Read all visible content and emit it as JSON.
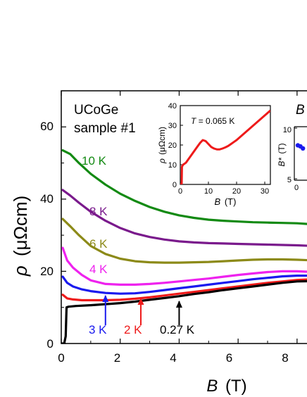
{
  "chart_data": [
    {
      "type": "line",
      "panel": "main",
      "xlabel_var": "B",
      "xlabel_unit": "(T)",
      "ylabel_var": "ρ",
      "ylabel_unit": "(μΩcm)",
      "xlim": [
        0,
        8.6
      ],
      "ylim": [
        0,
        70
      ],
      "xticks": [
        0,
        2,
        4,
        6,
        8
      ],
      "yticks": [
        0,
        20,
        40,
        60
      ],
      "annotation_sample": [
        "UCoGe",
        "sample #1"
      ],
      "series": [
        {
          "name": "10 K",
          "color": "#138a13",
          "x": [
            0.05,
            0.3,
            0.6,
            1.0,
            1.5,
            2.0,
            2.5,
            3.0,
            3.5,
            4.0,
            4.5,
            5.0,
            5.5,
            6.0,
            6.5,
            7.0,
            7.5,
            8.0,
            8.6
          ],
          "y": [
            53.5,
            52.5,
            50.0,
            47.0,
            44.0,
            41.5,
            39.5,
            37.8,
            36.5,
            35.5,
            34.8,
            34.3,
            34.0,
            33.8,
            33.6,
            33.5,
            33.4,
            33.3,
            33.0
          ]
        },
        {
          "name": "8 K",
          "color": "#7a1a8c",
          "x": [
            0.05,
            0.3,
            0.6,
            1.0,
            1.5,
            2.0,
            2.5,
            3.0,
            3.5,
            4.0,
            4.5,
            5.0,
            5.5,
            6.0,
            6.5,
            7.0,
            7.5,
            8.0,
            8.6
          ],
          "y": [
            42.5,
            41.0,
            39.0,
            36.5,
            34.0,
            32.0,
            30.5,
            29.5,
            28.8,
            28.3,
            28.0,
            27.8,
            27.7,
            27.6,
            27.5,
            27.4,
            27.3,
            27.2,
            27.0
          ]
        },
        {
          "name": "6 K",
          "color": "#8c8a18",
          "x": [
            0.05,
            0.3,
            0.6,
            1.0,
            1.5,
            2.0,
            2.5,
            3.0,
            3.5,
            4.0,
            4.5,
            5.0,
            5.5,
            6.0,
            6.5,
            7.0,
            7.5,
            8.0,
            8.6
          ],
          "y": [
            34.5,
            32.5,
            30.0,
            27.0,
            24.8,
            23.5,
            22.8,
            22.5,
            22.4,
            22.4,
            22.5,
            22.6,
            22.8,
            23.0,
            23.2,
            23.3,
            23.3,
            23.2,
            23.0
          ]
        },
        {
          "name": "4 K",
          "color": "#ee22ee",
          "x": [
            0.05,
            0.2,
            0.4,
            0.7,
            1.0,
            1.5,
            2.0,
            2.5,
            3.0,
            3.5,
            4.0,
            4.5,
            5.0,
            5.5,
            6.0,
            6.5,
            7.0,
            7.5,
            8.0,
            8.6
          ],
          "y": [
            26.5,
            23.0,
            21.0,
            19.0,
            17.5,
            16.5,
            16.3,
            16.3,
            16.5,
            16.8,
            17.2,
            17.6,
            18.0,
            18.5,
            19.0,
            19.4,
            19.8,
            20.0,
            20.0,
            19.8
          ]
        },
        {
          "name": "3 K",
          "color": "#1a1aee",
          "x": [
            0.05,
            0.2,
            0.4,
            0.7,
            1.0,
            1.5,
            2.0,
            2.5,
            3.0,
            3.5,
            4.0,
            4.5,
            5.0,
            5.5,
            6.0,
            6.5,
            7.0,
            7.5,
            8.0,
            8.6
          ],
          "y": [
            18.5,
            16.8,
            15.8,
            15.0,
            14.5,
            14.0,
            13.8,
            13.9,
            14.3,
            14.8,
            15.3,
            15.8,
            16.3,
            16.8,
            17.3,
            17.8,
            18.2,
            18.6,
            18.8,
            18.8
          ]
        },
        {
          "name": "2 K",
          "color": "#ee1a1a",
          "x": [
            0.05,
            0.2,
            0.4,
            0.7,
            1.0,
            1.5,
            2.0,
            2.5,
            3.0,
            3.5,
            4.0,
            4.5,
            5.0,
            5.5,
            6.0,
            6.5,
            7.0,
            7.5,
            8.0,
            8.6
          ],
          "y": [
            13.5,
            12.5,
            12.2,
            12.0,
            12.0,
            12.0,
            12.1,
            12.4,
            12.8,
            13.3,
            13.8,
            14.3,
            14.8,
            15.3,
            15.8,
            16.3,
            16.8,
            17.2,
            17.6,
            17.8
          ]
        },
        {
          "name": "0.27 K",
          "color": "#000000",
          "x": [
            0.02,
            0.1,
            0.15,
            0.18,
            0.25,
            0.5,
            1.0,
            1.5,
            2.0,
            2.5,
            3.0,
            3.5,
            4.0,
            4.5,
            5.0,
            5.5,
            6.0,
            6.5,
            7.0,
            7.5,
            8.0,
            8.6
          ],
          "y": [
            0,
            0,
            2,
            10,
            10.2,
            10.4,
            10.6,
            10.9,
            11.2,
            11.6,
            12.1,
            12.6,
            13.1,
            13.7,
            14.2,
            14.8,
            15.3,
            15.8,
            16.3,
            16.8,
            17.2,
            17.3
          ]
        }
      ],
      "arrows": [
        {
          "label": "3 K",
          "x": 1.5
        },
        {
          "label": "2 K",
          "x": 2.7
        },
        {
          "label": "0.27 K",
          "x": 4.0
        },
        {
          "label": "",
          "x": 8.55
        }
      ]
    },
    {
      "type": "line",
      "panel": "inset",
      "annotation_var": "T",
      "annotation_value": "= 0.065 K",
      "xlabel_var": "B",
      "xlabel_unit": "(T)",
      "ylabel_var": "ρ",
      "ylabel_unit": "(μΩcm)",
      "xlim": [
        0,
        32
      ],
      "ylim": [
        0,
        40
      ],
      "xticks": [
        0,
        10,
        20,
        30
      ],
      "yticks": [
        0,
        10,
        20,
        30,
        40
      ],
      "series": [
        {
          "color": "#ee1a1a",
          "x": [
            0,
            0.5,
            0.6,
            1,
            2,
            3,
            4,
            5,
            6,
            7,
            8,
            9,
            10,
            11,
            12,
            13,
            14,
            15,
            16,
            17,
            18,
            19,
            20,
            22,
            24,
            26,
            28,
            30,
            32
          ],
          "y": [
            0,
            0,
            9,
            10,
            11,
            13,
            15,
            17,
            19,
            21,
            22.5,
            22,
            20.5,
            19,
            18.2,
            17.8,
            17.8,
            18.2,
            18.8,
            19.5,
            20.5,
            21.5,
            22.5,
            25,
            27.5,
            30,
            32.5,
            35,
            37.5
          ]
        }
      ]
    },
    {
      "type": "scatter",
      "panel": "inset-partial",
      "title_var": "B",
      "ylabel_var": "B*",
      "ylabel_unit": "(T)",
      "yticks": [
        5,
        10
      ],
      "xticks": [
        0
      ],
      "series": [
        {
          "color": "#1a1aee",
          "x": [
            0,
            0.3,
            0.6
          ],
          "y": [
            8.3,
            8.2,
            8.0
          ]
        }
      ]
    }
  ],
  "text": {
    "ytick": [
      "0",
      "20",
      "40",
      "60"
    ],
    "xtick": [
      "0",
      "2",
      "4",
      "6",
      "8"
    ],
    "inset_ytick": [
      "0",
      "10",
      "20",
      "30",
      "40"
    ],
    "inset_xtick": [
      "0",
      "10",
      "20",
      "30"
    ],
    "right_ytick": [
      "5",
      "10"
    ],
    "right_xtick": [
      "0"
    ]
  }
}
